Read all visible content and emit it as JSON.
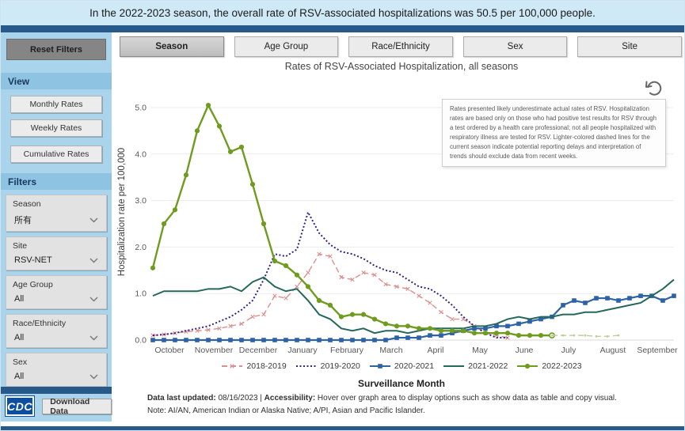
{
  "banner": {
    "text": "In the 2022-2023 season, the overall rate of RSV-associated hospitalizations was 50.5 per 100,000 people."
  },
  "sidebar": {
    "reset_button": "Reset Filters",
    "view_section": {
      "title": "View",
      "options": [
        "Monthly Rates",
        "Weekly Rates",
        "Cumulative Rates"
      ]
    },
    "filters_section": {
      "title": "Filters",
      "filters": [
        {
          "label": "Season",
          "value": "所有"
        },
        {
          "label": "Site",
          "value": "RSV-NET"
        },
        {
          "label": "Age Group",
          "value": "All"
        },
        {
          "label": "Race/Ethnicity",
          "value": "All"
        },
        {
          "label": "Sex",
          "value": "All"
        }
      ]
    },
    "logo": "CDC",
    "download_button": "Download Data"
  },
  "tabs": [
    {
      "label": "Season"
    },
    {
      "label": "Age Group"
    },
    {
      "label": "Race/Ethnicity"
    },
    {
      "label": "Sex"
    },
    {
      "label": "Site"
    }
  ],
  "tooltip": {
    "text": "Rates presented likely underestimate actual rates of RSV. Hospitalization rates are based only on those who had positive test results for RSV through a test ordered by a health care professional; not all people hospitalized with respiratory illness are tested for RSV. Lighter-colored dashed lines for the current season indicate potential reporting delays and interpretation of trends should exclude data from recent weeks."
  },
  "footer": {
    "updated_label": "Data last updated:",
    "updated_value": " 08/16/2023 | ",
    "accessibility_label": "Accessibility:",
    "accessibility_text": " Hover over graph area to display options such as show data as table and copy visual.",
    "note": "Note: AI/AN, American Indian or Alaska Native; A/PI, Asian and Pacific Islander."
  },
  "colors": {
    "banner_bg": "#cfe9f6",
    "navy_bar": "#27598b",
    "sidebar_bg": "#a9d4ec",
    "cdc_blue": "#0b4ea2"
  },
  "chart_data": {
    "type": "line",
    "title": "Rates of RSV-Associated Hospitalization, all seasons",
    "xlabel": "Surveillance Month",
    "ylabel": "Hospitalization rate per 100,000",
    "ylim": [
      0,
      5.0
    ],
    "yticks": [
      "0.0",
      "1.0",
      "2.0",
      "3.0",
      "4.0",
      "5.0"
    ],
    "grid": "horizontal",
    "legend_position": "bottom",
    "categories": [
      "October",
      "November",
      "December",
      "January",
      "February",
      "March",
      "April",
      "May",
      "June",
      "July",
      "August",
      "September"
    ],
    "points_per_month": 4,
    "series": [
      {
        "name": "2018-2019",
        "color": "#dc8f8f",
        "style": "dashed",
        "marker": "x",
        "width": 1.4,
        "values": [
          0.1,
          0.12,
          0.15,
          0.18,
          0.2,
          0.22,
          0.25,
          0.3,
          0.35,
          0.5,
          0.55,
          0.95,
          0.9,
          1.15,
          1.45,
          1.85,
          1.8,
          1.35,
          1.3,
          1.45,
          1.4,
          1.2,
          1.15,
          1.1,
          0.95,
          0.8,
          0.6,
          0.45,
          0.45,
          0.3,
          0.15,
          0.1,
          0.05,
          null,
          null,
          null,
          null,
          null,
          null,
          null,
          null,
          null,
          null,
          null,
          null,
          null,
          null,
          null
        ]
      },
      {
        "name": "2019-2020",
        "color": "#2f2484",
        "style": "dotted",
        "marker": "none",
        "width": 2,
        "values": [
          0.1,
          0.12,
          0.15,
          0.2,
          0.25,
          0.3,
          0.4,
          0.5,
          0.65,
          0.85,
          1.3,
          1.85,
          1.8,
          1.95,
          2.75,
          2.3,
          2.05,
          1.9,
          1.85,
          1.75,
          1.6,
          1.5,
          1.45,
          1.3,
          1.15,
          1.1,
          0.95,
          0.75,
          0.5,
          0.3,
          0.15,
          0.05,
          0.05,
          null,
          null,
          null,
          null,
          null,
          null,
          null,
          null,
          null,
          null,
          null,
          null,
          null,
          null,
          null
        ]
      },
      {
        "name": "2020-2021",
        "color": "#2e62a6",
        "style": "solid",
        "marker": "square",
        "width": 2.2,
        "values": [
          0,
          0,
          0,
          0,
          0,
          0,
          0,
          0,
          0,
          0,
          0,
          0,
          0,
          0,
          0,
          0,
          0,
          0,
          0,
          0,
          0,
          0,
          0.05,
          0.05,
          0.05,
          0.1,
          0.1,
          0.15,
          0.2,
          0.25,
          0.25,
          0.3,
          0.3,
          0.35,
          0.4,
          0.45,
          0.5,
          0.75,
          0.85,
          0.8,
          0.9,
          0.9,
          0.85,
          0.9,
          0.95,
          0.95,
          0.85,
          0.95
        ]
      },
      {
        "name": "2021-2022",
        "color": "#25685b",
        "style": "solid",
        "marker": "none",
        "width": 2,
        "values": [
          0.95,
          1.05,
          1.05,
          1.05,
          1.05,
          1.1,
          1.1,
          1.15,
          1.05,
          1.25,
          1.35,
          1.15,
          1.05,
          1.1,
          0.85,
          0.55,
          0.45,
          0.25,
          0.2,
          0.25,
          0.15,
          0.2,
          0.2,
          0.15,
          0.2,
          0.25,
          0.25,
          0.25,
          0.25,
          0.3,
          0.3,
          0.35,
          0.45,
          0.5,
          0.45,
          0.5,
          0.5,
          0.55,
          0.55,
          0.6,
          0.6,
          0.65,
          0.7,
          0.75,
          0.8,
          0.95,
          1.1,
          1.3
        ]
      },
      {
        "name": "2022-2023",
        "color": "#6f9c1f",
        "style": "solid",
        "marker": "circle",
        "last_marker": "open",
        "width": 2.4,
        "values": [
          1.55,
          2.5,
          2.8,
          3.55,
          4.5,
          5.05,
          4.6,
          4.05,
          4.15,
          3.35,
          2.5,
          1.7,
          1.6,
          1.4,
          1.15,
          0.85,
          0.75,
          0.5,
          0.55,
          0.55,
          0.45,
          0.35,
          0.3,
          0.3,
          0.25,
          0.25,
          0.2,
          0.2,
          0.2,
          0.15,
          0.15,
          0.15,
          0.15,
          0.1,
          0.1,
          0.1,
          0.1,
          null,
          null,
          null,
          null,
          null,
          null,
          null,
          null,
          null,
          null,
          null
        ]
      },
      {
        "name": "2022-2023 provisional",
        "color": "#bccf9a",
        "style": "dashed",
        "marker": "dot",
        "width": 1.4,
        "in_legend": false,
        "values": [
          null,
          null,
          null,
          null,
          null,
          null,
          null,
          null,
          null,
          null,
          null,
          null,
          null,
          null,
          null,
          null,
          null,
          null,
          null,
          null,
          null,
          null,
          null,
          null,
          null,
          null,
          null,
          null,
          null,
          null,
          null,
          null,
          null,
          null,
          null,
          null,
          0.1,
          0.1,
          0.1,
          0.1,
          0.08,
          0.08,
          0.1,
          null,
          null,
          null,
          null,
          null
        ]
      }
    ]
  }
}
